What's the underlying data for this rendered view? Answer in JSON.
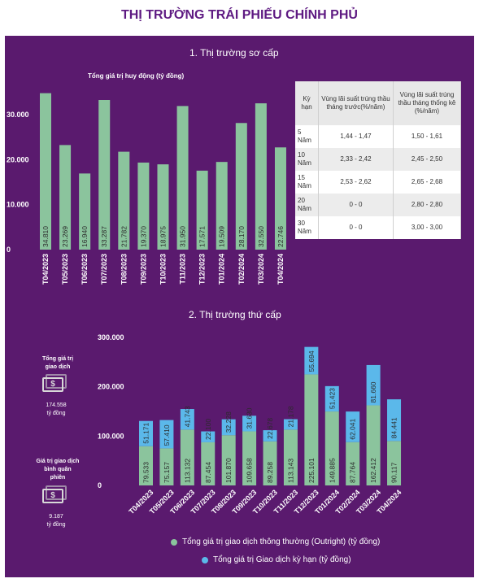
{
  "page_title": "THỊ TRƯỜNG TRÁI PHIẾU CHÍNH PHỦ",
  "colors": {
    "green": "#8bc49d",
    "blue": "#5bb8ea",
    "panel": "#5a1a6e",
    "title": "#5e1a82"
  },
  "primary": {
    "section_title": "1. Thị trường sơ cấp",
    "chart_title": "Tổng giá trị huy động (tỷ đồng)"
  },
  "secondary": {
    "section_title": "2. Thị trường thứ cấp"
  },
  "rates_table": {
    "headers": [
      "Kỳ hạn",
      "Vùng lãi suất trúng thầu tháng trước(%/năm)",
      "Vùng lãi suất trúng thầu tháng thống kê (%/năm)"
    ],
    "rows": [
      [
        "5 Năm",
        "1,44 - 1,47",
        "1,50 - 1,61"
      ],
      [
        "10 Năm",
        "2,33 - 2,42",
        "2,45 - 2,50"
      ],
      [
        "15 Năm",
        "2,53 - 2,62",
        "2,65 - 2,68"
      ],
      [
        "20 Năm",
        "0 - 0",
        "2,80 - 2,80"
      ],
      [
        "30 Năm",
        "0 - 0",
        "3,00 - 3,00"
      ]
    ]
  },
  "sidebar": {
    "total_label": "Tổng giá trị giao dịch",
    "total_value": "174.558",
    "total_unit": "tỷ đồng",
    "avg_label": "Giá trị giao dịch bình quân phiên",
    "avg_value": "9.187",
    "avg_unit": "tỷ đồng",
    "icon": "money-icon"
  },
  "chart_data": [
    {
      "type": "bar",
      "title": "Tổng giá trị huy động (tỷ đồng)",
      "categories": [
        "T04/2023",
        "T05/2023",
        "T06/2023",
        "T07/2023",
        "T08/2023",
        "T09/2023",
        "T10/2023",
        "T11/2023",
        "T12/2023",
        "T01/2024",
        "T02/2024",
        "T03/2024",
        "T04/2024"
      ],
      "values": [
        34810,
        23269,
        16940,
        33287,
        21782,
        19370,
        18975,
        31950,
        17571,
        19509,
        28170,
        32550,
        22746
      ],
      "value_labels": [
        "34.810",
        "23.269",
        "16.940",
        "33.287",
        "21.782",
        "19.370",
        "18.975",
        "31.950",
        "17.571",
        "19.509",
        "28.170",
        "32.550",
        "22.746"
      ],
      "y_ticks": [
        "0",
        "10.000",
        "20.000",
        "30.000"
      ],
      "ylim": [
        0,
        36000
      ],
      "color": "#8bc49d"
    },
    {
      "type": "bar",
      "stacked": true,
      "categories": [
        "T04/2023",
        "T05/2023",
        "T06/2023",
        "T07/2023",
        "T08/2023",
        "T09/2023",
        "T10/2023",
        "T11/2023",
        "T12/2023",
        "T01/2024",
        "T02/2024",
        "T03/2024",
        "T04/2024"
      ],
      "series": [
        {
          "name": "Tổng giá trị giao dịch thông thường (Outright) (tỷ đồng)",
          "color": "#8bc49d",
          "values": [
            79533,
            75157,
            113132,
            87454,
            101870,
            109658,
            89258,
            113143,
            225101,
            149885,
            87764,
            162412,
            90117
          ],
          "value_labels": [
            "79.533",
            "75.157",
            "113.132",
            "87.454",
            "101.870",
            "109.658",
            "89.258",
            "113.143",
            "225.101",
            "149.885",
            "87.764",
            "162.412",
            "90.117"
          ]
        },
        {
          "name": "Tổng giá trị Giao dịch kỳ hạn (tỷ đồng)",
          "color": "#5bb8ea",
          "values": [
            51171,
            57410,
            41743,
            22100,
            32228,
            31630,
            22678,
            21178,
            55694,
            51423,
            62041,
            81660,
            84441
          ],
          "value_labels": [
            "51.171",
            "57.410",
            "41.743",
            "22.100",
            "32.228",
            "31.630",
            "22.678",
            "21.178",
            "55.694",
            "51.423",
            "62.041",
            "81.660",
            "84.441"
          ]
        }
      ],
      "y_ticks": [
        "0",
        "100.000",
        "200.000",
        "300.000"
      ],
      "ylim": [
        0,
        300000
      ]
    }
  ]
}
